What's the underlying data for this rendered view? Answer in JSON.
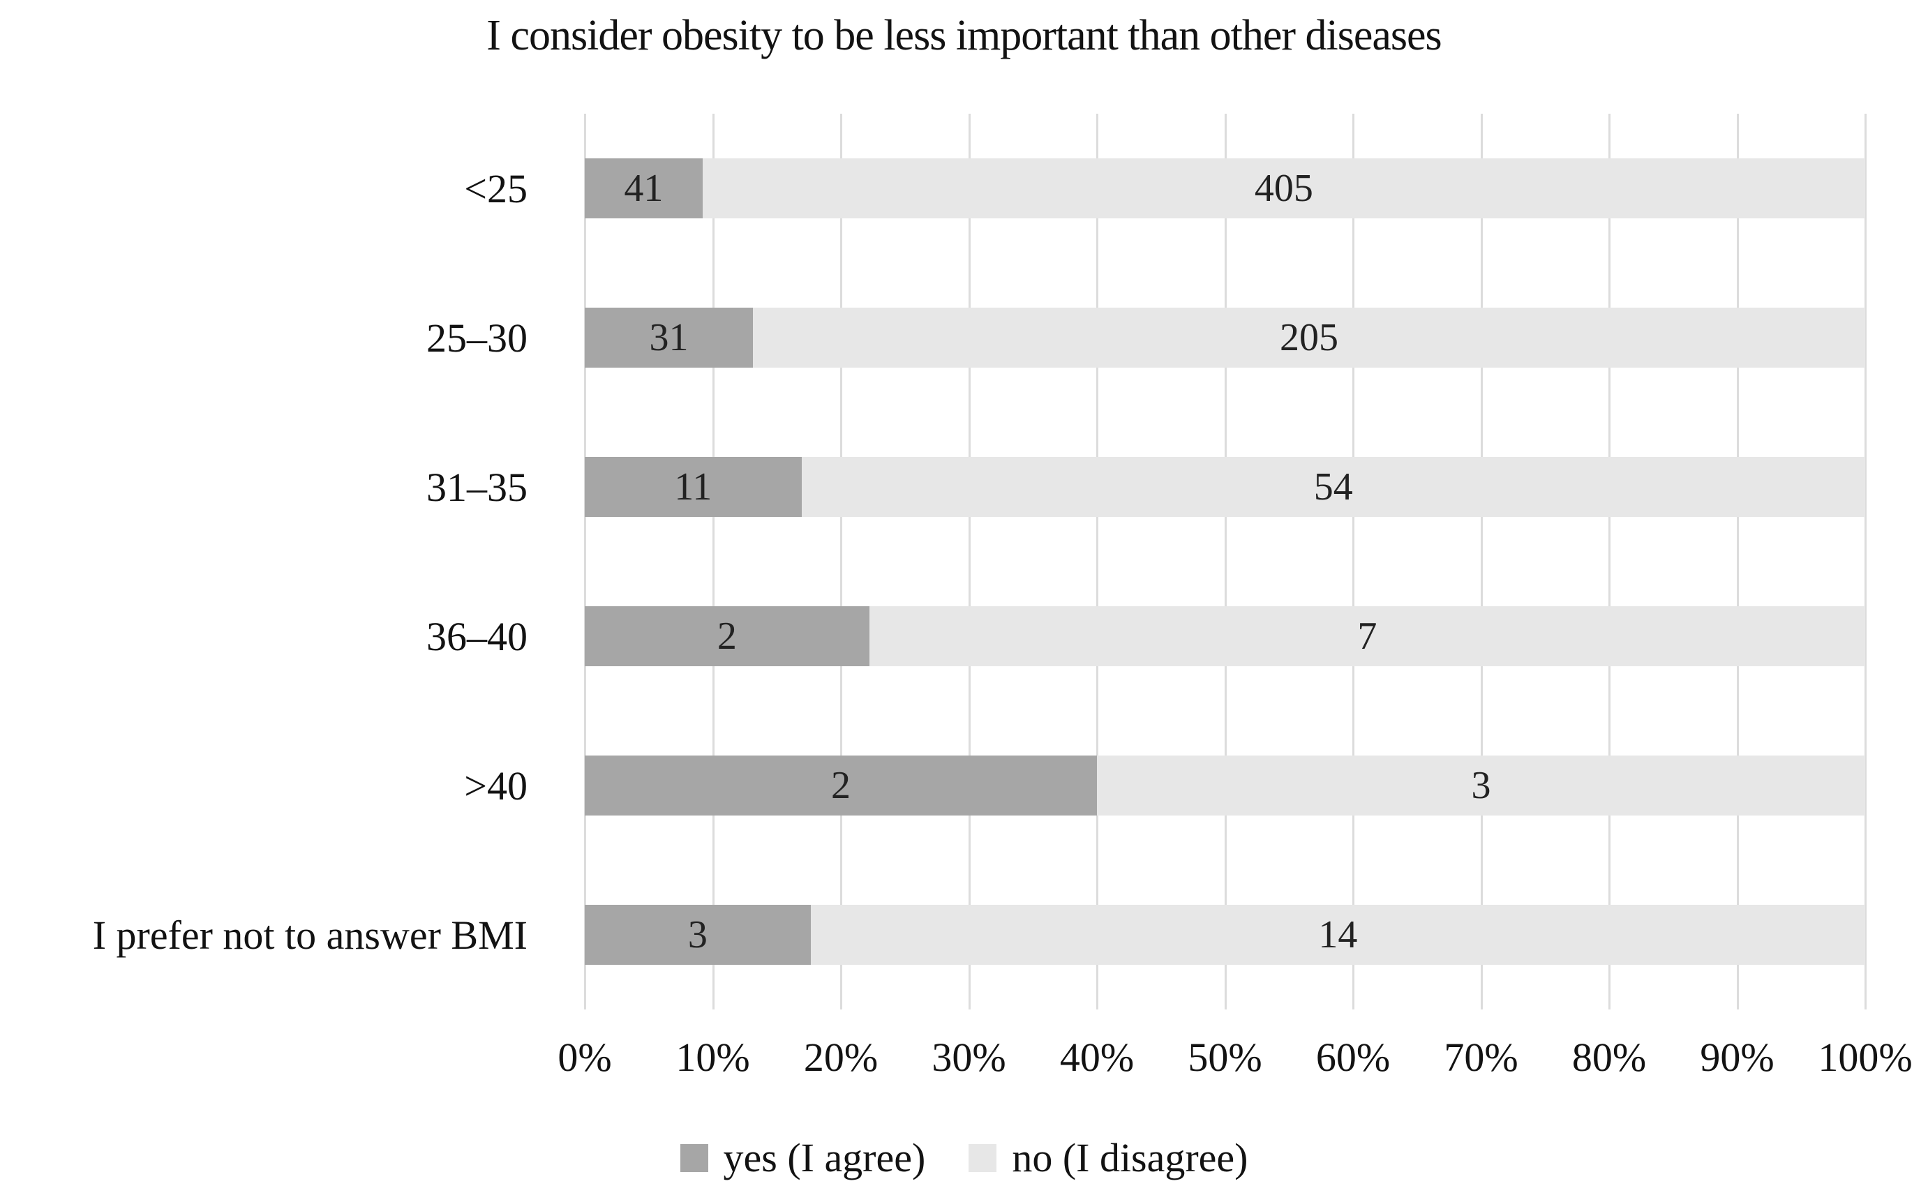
{
  "chart_data": {
    "type": "bar",
    "orientation": "horizontal",
    "stacked": true,
    "percent_stacked": true,
    "title": "I consider obesity to be less important than other diseases",
    "categories": [
      "<25",
      "25–30",
      "31–35",
      "36–40",
      ">40",
      "I prefer not to answer BMI"
    ],
    "series": [
      {
        "name": "yes (I agree)",
        "color": "#a6a6a6",
        "values": [
          41,
          31,
          11,
          2,
          2,
          3
        ]
      },
      {
        "name": "no (I disagree)",
        "color": "#e7e7e7",
        "values": [
          405,
          205,
          54,
          7,
          3,
          14
        ]
      }
    ],
    "x_axis": {
      "ticks": [
        "0%",
        "10%",
        "20%",
        "30%",
        "40%",
        "50%",
        "60%",
        "70%",
        "80%",
        "90%",
        "100%"
      ],
      "min_percent": 0,
      "max_percent": 100,
      "gridlines": true
    },
    "legend": {
      "position": "bottom",
      "entries": [
        "yes (I agree)",
        "no (I disagree)"
      ]
    },
    "style": {
      "gridline_color": "#dcdcdc",
      "background_color": "#ffffff",
      "text_color": "#121212"
    }
  }
}
